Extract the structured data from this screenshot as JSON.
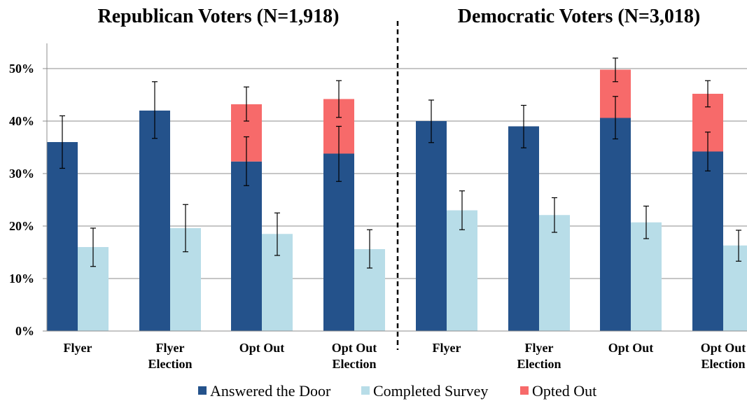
{
  "colors": {
    "answered": "#24528b",
    "completed": "#b8dde8",
    "opted": "#f76a6a"
  },
  "legend": [
    {
      "key": "answered",
      "label": "Answered the Door"
    },
    {
      "key": "completed",
      "label": "Completed Survey"
    },
    {
      "key": "opted",
      "label": "Opted Out"
    }
  ],
  "y_ticks": [
    "0%",
    "10%",
    "20%",
    "30%",
    "40%",
    "50%"
  ],
  "chart_data": [
    {
      "type": "bar",
      "title": "Republican Voters (N=1,918)",
      "categories": [
        [
          "Flyer"
        ],
        [
          "Flyer",
          "Election"
        ],
        [
          "Opt Out"
        ],
        [
          "Opt Out",
          "Election"
        ]
      ],
      "ylim": [
        0,
        55
      ],
      "grid": true,
      "series": [
        {
          "name": "Answered the Door",
          "key": "answered",
          "values": [
            36,
            42,
            32.3,
            33.8
          ],
          "err_low": [
            31,
            36.7,
            27.7,
            28.5
          ],
          "err_high": [
            41,
            47.5,
            37,
            39
          ]
        },
        {
          "name": "Opted Out",
          "key": "opted",
          "stacked_on": "Answered the Door",
          "values": [
            0,
            0,
            10.9,
            10.4
          ],
          "err_low": [
            null,
            null,
            40,
            40.7
          ],
          "err_high": [
            null,
            null,
            46.5,
            47.7
          ]
        },
        {
          "name": "Completed Survey",
          "key": "completed",
          "values": [
            16,
            19.6,
            18.5,
            15.6
          ],
          "err_low": [
            12.3,
            15.1,
            14.4,
            12
          ],
          "err_high": [
            19.6,
            24.1,
            22.5,
            19.3
          ]
        }
      ]
    },
    {
      "type": "bar",
      "title": "Democratic Voters (N=3,018)",
      "categories": [
        [
          "Flyer"
        ],
        [
          "Flyer",
          "Election"
        ],
        [
          "Opt Out"
        ],
        [
          "Opt Out",
          "Election"
        ]
      ],
      "ylim": [
        0,
        55
      ],
      "grid": true,
      "series": [
        {
          "name": "Answered the Door",
          "key": "answered",
          "values": [
            40,
            39,
            40.6,
            34.2
          ],
          "err_low": [
            35.9,
            34.9,
            36.6,
            30.5
          ],
          "err_high": [
            44,
            43,
            44.7,
            37.9
          ]
        },
        {
          "name": "Opted Out",
          "key": "opted",
          "stacked_on": "Answered the Door",
          "values": [
            0,
            0,
            9.2,
            11
          ],
          "err_low": [
            null,
            null,
            47.5,
            42.7
          ],
          "err_high": [
            null,
            null,
            52,
            47.7
          ]
        },
        {
          "name": "Completed Survey",
          "key": "completed",
          "values": [
            23,
            22.1,
            20.7,
            16.3
          ],
          "err_low": [
            19.3,
            18.8,
            17.6,
            13.3
          ],
          "err_high": [
            26.7,
            25.4,
            23.8,
            19.2
          ]
        }
      ]
    }
  ]
}
